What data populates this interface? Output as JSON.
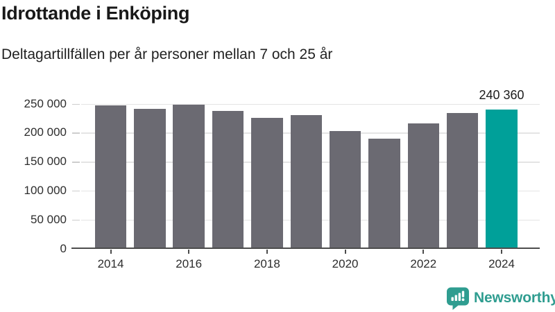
{
  "header": {
    "title": "Idrottande i Enköping",
    "subtitle": "Deltagartillfällen per år personer mellan 7 och 25 år"
  },
  "chart_data": {
    "type": "bar",
    "categories": [
      "2014",
      "2015",
      "2016",
      "2017",
      "2018",
      "2019",
      "2020",
      "2021",
      "2022",
      "2023",
      "2024"
    ],
    "values": [
      247000,
      241000,
      248000,
      238000,
      226000,
      230000,
      203000,
      189000,
      216000,
      234000,
      240360
    ],
    "highlight_index": 10,
    "highlight_value_label": "240 360",
    "bar_color": "#6b6a72",
    "highlight_color": "#00a099",
    "title": "Idrottande i Enköping",
    "xlabel": "",
    "ylabel": "",
    "ylim": [
      0,
      250000
    ],
    "yticks": [
      {
        "value": 0,
        "label": "0"
      },
      {
        "value": 50000,
        "label": "50 000"
      },
      {
        "value": 100000,
        "label": "100 000"
      },
      {
        "value": 150000,
        "label": "150 000"
      },
      {
        "value": 200000,
        "label": "200 000"
      },
      {
        "value": 250000,
        "label": "250 000"
      }
    ],
    "xtick_labels": [
      "2014",
      "2016",
      "2018",
      "2020",
      "2022",
      "2024"
    ],
    "xtick_indices": [
      0,
      2,
      4,
      6,
      8,
      10
    ],
    "grid": "horizontal",
    "legend": "none"
  },
  "branding": {
    "name": "Newsworthy",
    "color": "#2f9d90"
  }
}
